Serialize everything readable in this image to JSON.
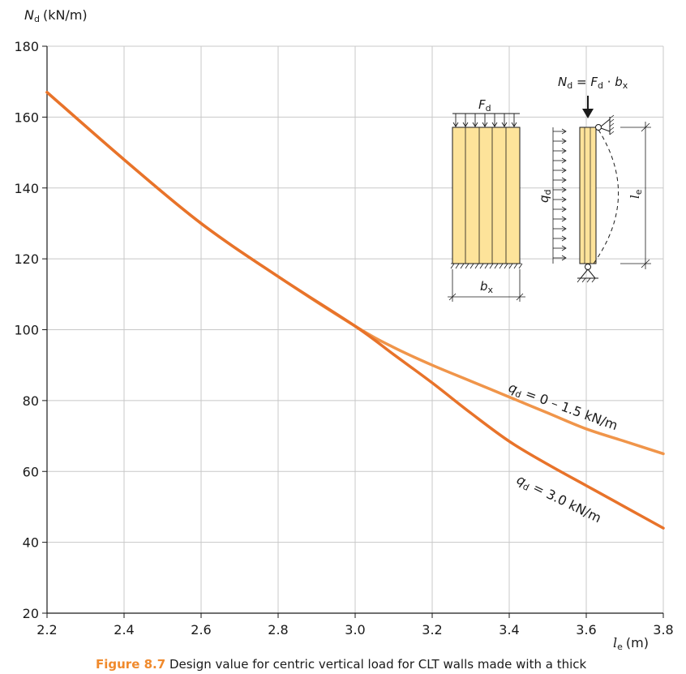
{
  "chart_data": {
    "type": "line",
    "xlabel": {
      "symbol": "l",
      "subscript": "e",
      "unit": "(m)"
    },
    "ylabel": {
      "symbol": "N",
      "subscript": "d",
      "unit": "(kN/m)"
    },
    "xlim": [
      2.2,
      3.8
    ],
    "ylim": [
      20,
      180
    ],
    "xticks": [
      "2.2",
      "2.4",
      "2.6",
      "2.8",
      "3.0",
      "3.2",
      "3.4",
      "3.6",
      "3.8"
    ],
    "yticks": [
      "20",
      "40",
      "60",
      "80",
      "100",
      "120",
      "140",
      "160",
      "180"
    ],
    "grid": true,
    "series": [
      {
        "label": "q_d = 0 – 1.5 kN/m",
        "label_parts": {
          "symbol": "q",
          "subscript": "d",
          "rest": " = 0 – 1.5 kN/m"
        },
        "color": "#f0954a",
        "x": [
          2.2,
          2.4,
          2.6,
          2.8,
          3.0,
          3.1,
          3.2,
          3.3,
          3.4,
          3.5,
          3.6,
          3.7,
          3.8
        ],
        "y": [
          167,
          148,
          130,
          115,
          101,
          95,
          90,
          85.5,
          81,
          76.5,
          72,
          68.5,
          65
        ]
      },
      {
        "label": "q_d = 3.0 kN/m",
        "label_parts": {
          "symbol": "q",
          "subscript": "d",
          "rest": " = 3.0 kN/m"
        },
        "color": "#e8732a",
        "x": [
          2.2,
          2.4,
          2.6,
          2.8,
          3.0,
          3.1,
          3.2,
          3.3,
          3.4,
          3.5,
          3.6,
          3.7,
          3.8
        ],
        "y": [
          167,
          148,
          130,
          115,
          101,
          93,
          85,
          76.5,
          68.5,
          62,
          56,
          50,
          44
        ]
      }
    ],
    "diagram": {
      "formula": {
        "lhs_symbol": "N",
        "lhs_sub": "d",
        "eq": " = ",
        "f_symbol": "F",
        "f_sub": "d",
        "dot": " · ",
        "b_symbol": "b",
        "b_sub": "x"
      },
      "load": {
        "symbol": "F",
        "subscript": "d"
      },
      "width": {
        "symbol": "b",
        "subscript": "x"
      },
      "lateral": {
        "symbol": "q",
        "subscript": "d"
      },
      "length": {
        "symbol": "l",
        "subscript": "e"
      }
    }
  },
  "caption": {
    "figure_number": "Figure 8.7",
    "text": " Design value for centric vertical load for CLT walls made with a thick"
  }
}
